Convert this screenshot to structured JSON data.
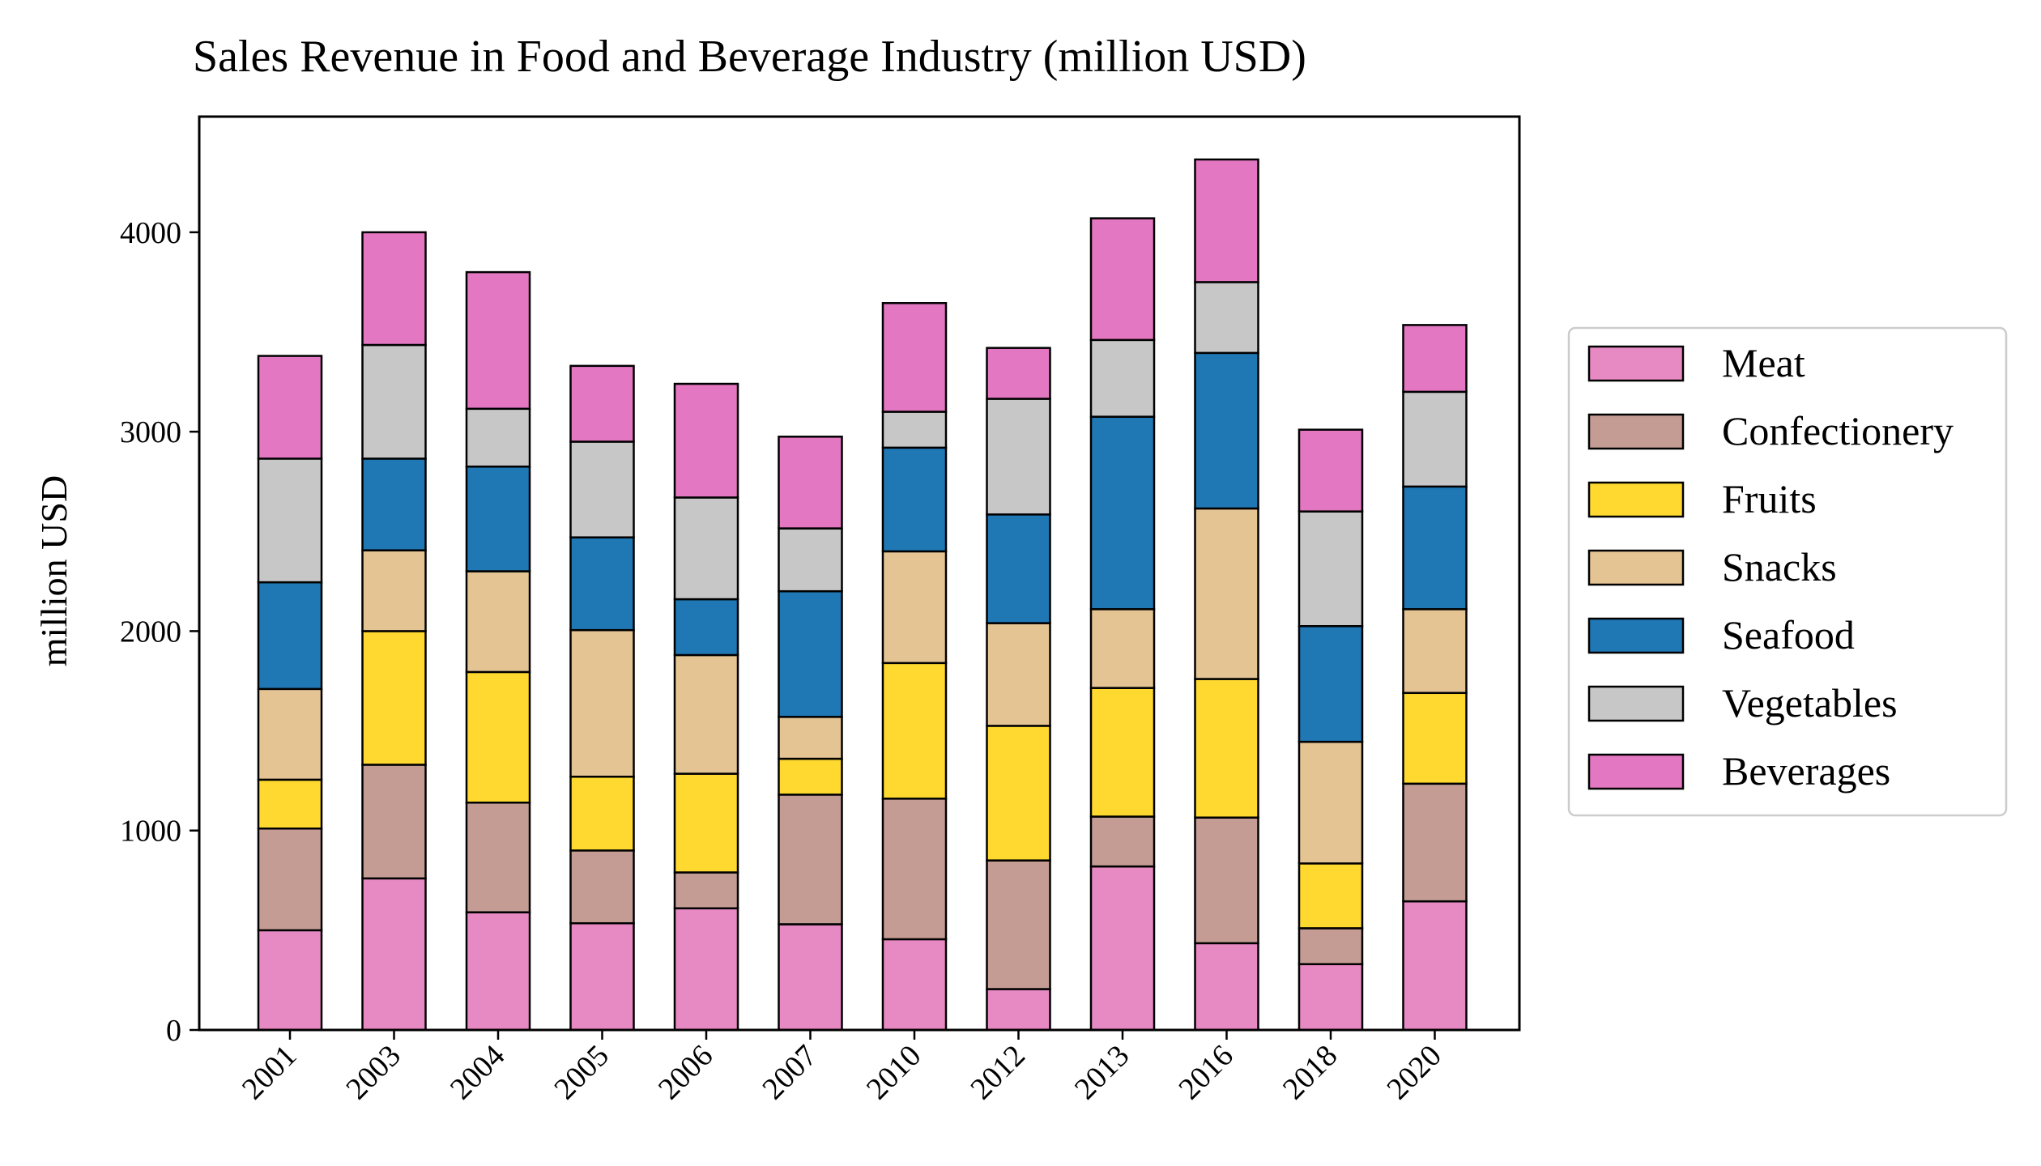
{
  "chart_data": {
    "type": "bar",
    "stacked": true,
    "title": "Sales Revenue in Food and Beverage Industry (million USD)",
    "xlabel": "",
    "ylabel": "million USD",
    "ylim": [
      0,
      4580
    ],
    "yticks": [
      0,
      1000,
      2000,
      3000,
      4000
    ],
    "grid": false,
    "legend_position": "right",
    "categories": [
      "2001",
      "2003",
      "2004",
      "2005",
      "2006",
      "2007",
      "2010",
      "2012",
      "2013",
      "2016",
      "2018",
      "2020"
    ],
    "series": [
      {
        "name": "Meat",
        "color": "#e78ac3",
        "values": [
          500,
          760,
          590,
          535,
          610,
          530,
          455,
          205,
          820,
          435,
          330,
          645
        ]
      },
      {
        "name": "Confectionery",
        "color": "#c49c94",
        "values": [
          510,
          570,
          550,
          365,
          180,
          650,
          705,
          645,
          250,
          630,
          180,
          590
        ]
      },
      {
        "name": "Fruits",
        "color": "#ffd92f",
        "values": [
          245,
          670,
          655,
          370,
          495,
          180,
          680,
          675,
          645,
          695,
          325,
          455
        ]
      },
      {
        "name": "Snacks",
        "color": "#e5c494",
        "values": [
          455,
          405,
          505,
          735,
          595,
          210,
          560,
          515,
          395,
          855,
          610,
          420
        ]
      },
      {
        "name": "Seafood",
        "color": "#1f77b4",
        "values": [
          535,
          460,
          525,
          465,
          280,
          630,
          520,
          545,
          965,
          780,
          580,
          615
        ]
      },
      {
        "name": "Vegetables",
        "color": "#c7c7c7",
        "values": [
          620,
          570,
          290,
          480,
          510,
          315,
          180,
          580,
          385,
          355,
          575,
          475
        ]
      },
      {
        "name": "Beverages",
        "color": "#e377c2",
        "values": [
          515,
          565,
          685,
          380,
          570,
          460,
          545,
          255,
          610,
          615,
          410,
          335
        ]
      }
    ]
  }
}
